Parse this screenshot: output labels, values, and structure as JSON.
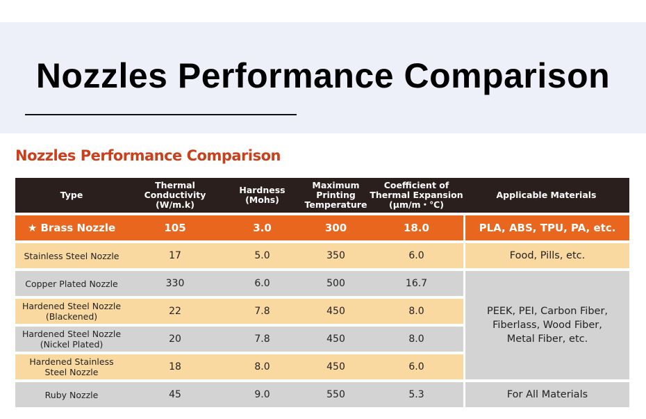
{
  "header": {
    "title": "Nozzles Performance Comparison"
  },
  "section": {
    "title": "Nozzles Performance Comparison"
  },
  "table": {
    "columns": [
      "Type",
      "Thermal Conductivity\n(W/m.k)",
      "Hardness\n(Mohs)",
      "Maximum\nPrinting\nTemperature",
      "Coefficient of\nThermal Expansion\n(μm/m・℃)",
      "Applicable Materials"
    ],
    "rows": [
      [
        "★  Brass Nozzle",
        "105",
        "3.0",
        "300",
        "18.0"
      ],
      [
        "Stainless Steel Nozzle",
        "17",
        "5.0",
        "350",
        "6.0"
      ],
      [
        "Copper Plated Nozzle",
        "330",
        "6.0",
        "500",
        "16.7"
      ],
      [
        "Hardened Steel Nozzle\n(Blackened)",
        "22",
        "7.8",
        "450",
        "8.0"
      ],
      [
        "Hardened Steel Nozzle\n(Nickel Plated)",
        "20",
        "7.8",
        "450",
        "8.0"
      ],
      [
        "Hardened Stainless\nSteel Nozzle",
        "18",
        "8.0",
        "450",
        "6.0"
      ],
      [
        "Ruby Nozzle",
        "45",
        "9.0",
        "550",
        "5.3"
      ]
    ],
    "materials": [
      "PLA, ABS, TPU, PA, etc.",
      "Food, Pills, etc.",
      "PEEK, PEI, Carbon Fiber,\nFiberlass, Wood Fiber,\nMetal Fiber, etc.",
      "For All Materials"
    ]
  }
}
